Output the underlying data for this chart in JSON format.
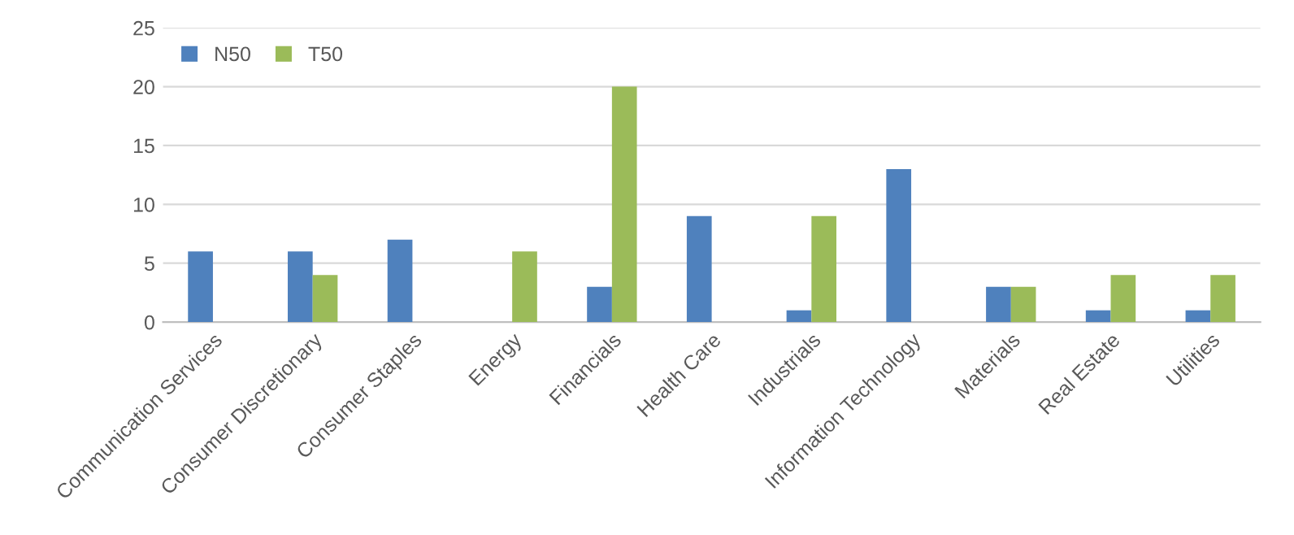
{
  "chart_data": {
    "type": "bar",
    "categories": [
      "Communication Services",
      "Consumer Discretionary",
      "Consumer Staples",
      "Energy",
      "Financials",
      "Health Care",
      "Industrials",
      "Information Technology",
      "Materials",
      "Real Estate",
      "Utilities"
    ],
    "series": [
      {
        "name": "N50",
        "color": "#4f81bd",
        "values": [
          6,
          6,
          7,
          0,
          3,
          9,
          1,
          13,
          3,
          1,
          1
        ]
      },
      {
        "name": "T50",
        "color": "#9bbb59",
        "values": [
          0,
          4,
          0,
          6,
          20,
          0,
          9,
          0,
          3,
          4,
          4
        ]
      }
    ],
    "ylim": [
      0,
      25
    ],
    "yticks": [
      0,
      5,
      10,
      15,
      20,
      25
    ],
    "grid": "y",
    "legend": "top left"
  }
}
